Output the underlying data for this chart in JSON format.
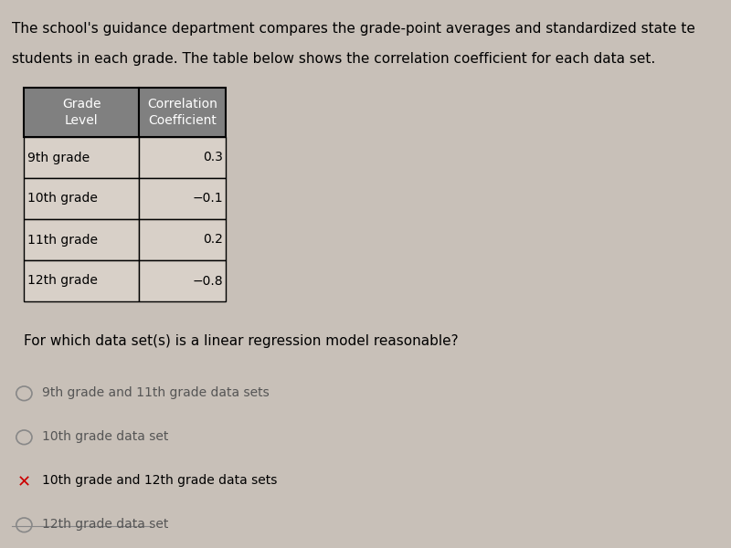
{
  "title_line1": "The school's guidance department compares the grade-point averages and standardized state te",
  "title_line2": "students in each grade. The table below shows the correlation coefficient for each data set.",
  "table_header_col1": "Grade\nLevel",
  "table_header_col2": "Correlation\nCoefficient",
  "table_rows": [
    [
      "9th grade",
      "0.3"
    ],
    [
      "10th grade",
      "−0.1"
    ],
    [
      "11th grade",
      "0.2"
    ],
    [
      "12th grade",
      "−0.8"
    ]
  ],
  "question": "For which data set(s) is a linear regression model reasonable?",
  "choices": [
    {
      "marker": "circle",
      "selected": false,
      "text": "9th grade and 11th grade data sets"
    },
    {
      "marker": "circle",
      "selected": false,
      "text": "10th grade data set"
    },
    {
      "marker": "x",
      "selected": true,
      "text": "10th grade and 12th grade data sets"
    },
    {
      "marker": "circle",
      "selected": false,
      "text": "12th grade data set"
    }
  ],
  "bg_color": "#c8c0b8",
  "header_bg": "#808080",
  "header_text_color": "#ffffff",
  "cell_bg": "#d8d0c8",
  "cell_text_color": "#000000",
  "border_color": "#000000",
  "x_mark_color": "#cc0000",
  "font_size_title": 11,
  "font_size_table": 10,
  "font_size_question": 11,
  "font_size_choices": 10
}
